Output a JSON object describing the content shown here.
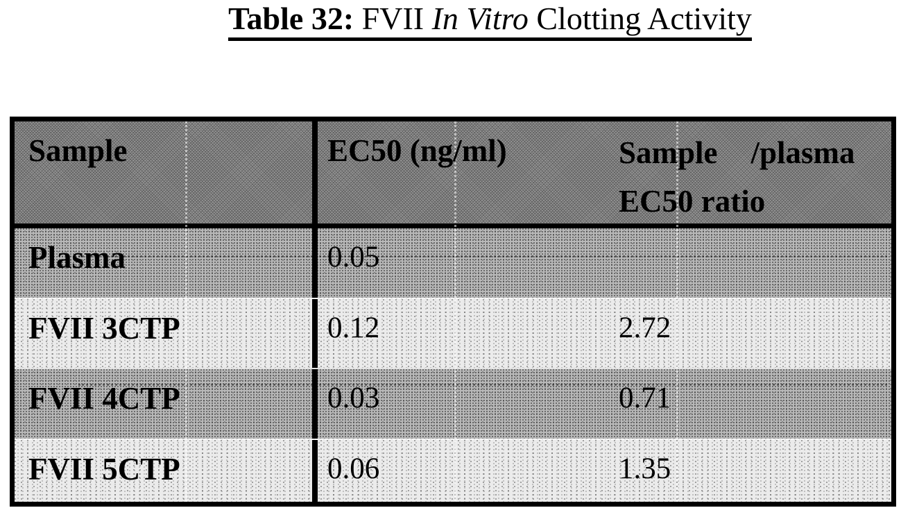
{
  "title": {
    "bold": "Table 32:",
    "regular_1": " FVII ",
    "italic": "In Vitro",
    "regular_2": " Clotting Activity"
  },
  "table": {
    "header": {
      "sample": "Sample",
      "ec50": "EC50 (ng/ml)",
      "ratio_line1_left": "Sample",
      "ratio_line1_right": "/plasma",
      "ratio_line2": "EC50 ratio"
    },
    "rows": [
      {
        "sample": "Plasma",
        "ec50": "0.05",
        "ratio": ""
      },
      {
        "sample": "FVII 3CTP",
        "ec50": "0.12",
        "ratio": "2.72"
      },
      {
        "sample": "FVII 4CTP",
        "ec50": "0.03",
        "ratio": "0.71"
      },
      {
        "sample": "FVII 5CTP",
        "ec50": "0.06",
        "ratio": "1.35"
      }
    ]
  },
  "colors": {
    "border": "#000000",
    "header_bg": "#8f8f8f",
    "row_medium_bg": "#b8b8b8",
    "row_light_bg": "#ebebeb",
    "text": "#000000",
    "page_bg": "#ffffff"
  }
}
